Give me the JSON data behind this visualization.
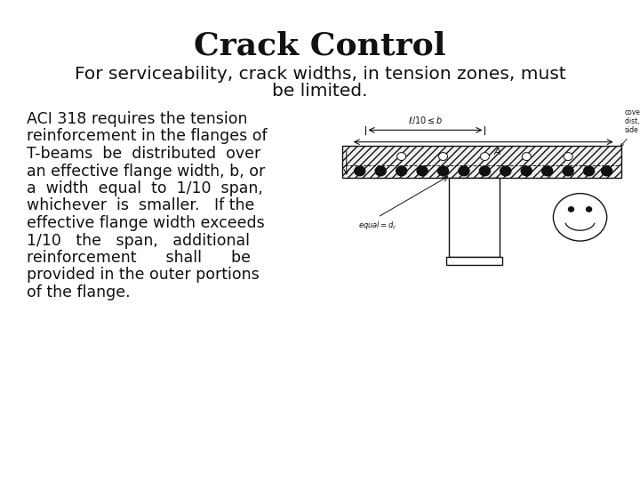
{
  "title": "Crack Control",
  "title_fontsize": 26,
  "subtitle_line1": "For serviceability, crack widths, in tension zones, must",
  "subtitle_line2": "be limited.",
  "subtitle_fontsize": 14.5,
  "body_lines": [
    "ACI 318 requires the tension",
    "reinforcement in the flanges of",
    "T-beams  be  distributed  over",
    "an effective flange width, b, or",
    "a  width  equal  to  1/10  span,",
    "whichever  is  smaller.   If the",
    "effective flange width exceeds",
    "1/10   the   span,   additional",
    "reinforcement      shall      be",
    "provided in the outer portions",
    "of the flange."
  ],
  "body_fontsize": 12.5,
  "bg_color": "#ffffff",
  "text_color": "#111111"
}
